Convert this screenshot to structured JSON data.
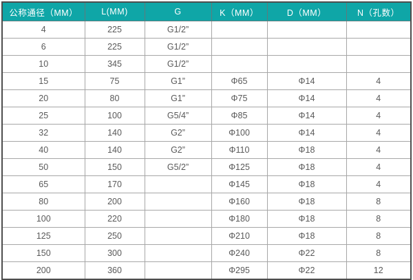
{
  "table": {
    "name": "flange-dimension-spec-table",
    "columns": [
      {
        "label": "公称通径（MM）"
      },
      {
        "label": "L(MM)"
      },
      {
        "label": "G"
      },
      {
        "label": "K（MM）"
      },
      {
        "label": "D（MM）"
      },
      {
        "label": "N（孔数）"
      }
    ],
    "rows": [
      [
        "4",
        "225",
        "G1/2”",
        "",
        "",
        ""
      ],
      [
        "6",
        "225",
        "G1/2”",
        "",
        "",
        ""
      ],
      [
        "10",
        "345",
        "G1/2”",
        "",
        "",
        ""
      ],
      [
        "15",
        "75",
        "G1”",
        "Φ65",
        "Φ14",
        "4"
      ],
      [
        "20",
        "80",
        "G1”",
        "Φ75",
        "Φ14",
        "4"
      ],
      [
        "25",
        "100",
        "G5/4”",
        "Φ85",
        "Φ14",
        "4"
      ],
      [
        "32",
        "140",
        "G2”",
        "Φ100",
        "Φ14",
        "4"
      ],
      [
        "40",
        "140",
        "G2”",
        "Φ110",
        "Φ18",
        "4"
      ],
      [
        "50",
        "150",
        "G5/2”",
        "Φ125",
        "Φ18",
        "4"
      ],
      [
        "65",
        "170",
        "",
        "Φ145",
        "Φ18",
        "4"
      ],
      [
        "80",
        "200",
        "",
        "Φ160",
        "Φ18",
        "8"
      ],
      [
        "100",
        "220",
        "",
        "Φ180",
        "Φ18",
        "8"
      ],
      [
        "125",
        "250",
        "",
        "Φ210",
        "Φ18",
        "8"
      ],
      [
        "150",
        "300",
        "",
        "Φ240",
        "Φ22",
        "8"
      ],
      [
        "200",
        "360",
        "",
        "Φ295",
        "Φ22",
        "12"
      ]
    ],
    "colors": {
      "header_bg": "#0FA6A7",
      "header_text": "#FFFFFF",
      "grid_line": "#A6A6A6",
      "outer_border": "#4D4D4D",
      "cell_bg": "#FFFFFF",
      "cell_text": "#595959"
    }
  }
}
